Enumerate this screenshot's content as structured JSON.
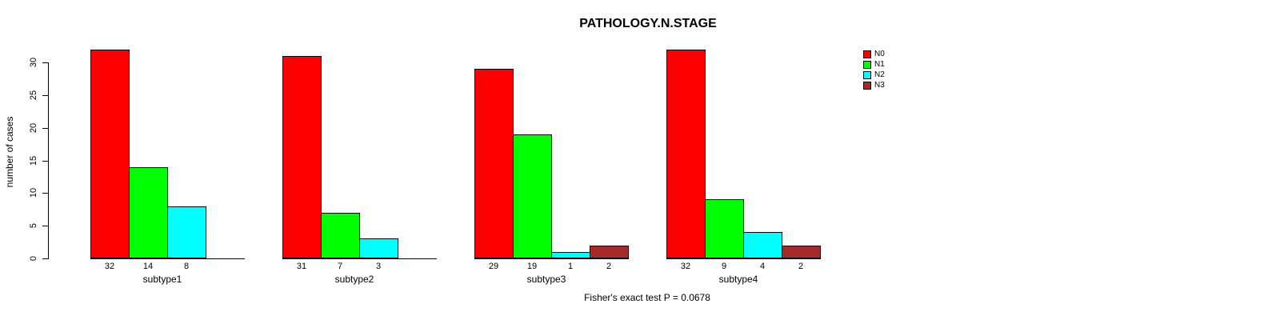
{
  "chart_data": {
    "type": "bar",
    "title": "PATHOLOGY.N.STAGE",
    "ylabel": "number of cases",
    "xlabel": "",
    "ylim": [
      0,
      30
    ],
    "yticks": [
      0,
      5,
      10,
      15,
      20,
      25,
      30
    ],
    "grid": false,
    "legend_position": "top-right",
    "legend": [
      {
        "label": "N0",
        "color": "#FF0000"
      },
      {
        "label": "N1",
        "color": "#00FF00"
      },
      {
        "label": "N2",
        "color": "#00FFFF"
      },
      {
        "label": "N3",
        "color": "#A52A2A"
      }
    ],
    "groups": [
      {
        "label": "subtype1",
        "values": [
          32,
          14,
          8,
          0
        ],
        "bar_labels": [
          "32",
          "14",
          "8",
          ""
        ]
      },
      {
        "label": "subtype2",
        "values": [
          31,
          7,
          3,
          0
        ],
        "bar_labels": [
          "31",
          "7",
          "3",
          ""
        ]
      },
      {
        "label": "subtype3",
        "values": [
          29,
          19,
          1,
          2
        ],
        "bar_labels": [
          "29",
          "19",
          "1",
          "2"
        ]
      },
      {
        "label": "subtype4",
        "values": [
          32,
          9,
          4,
          2
        ],
        "bar_labels": [
          "32",
          "9",
          "4",
          "2"
        ]
      }
    ],
    "annotation": "Fisher's exact test P = 0.0678"
  }
}
